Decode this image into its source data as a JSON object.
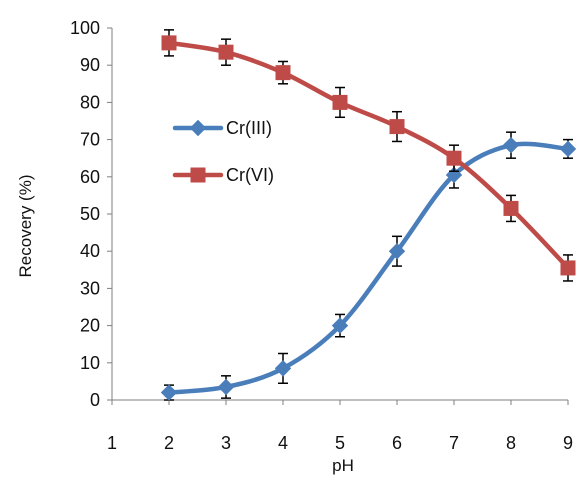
{
  "chart_data": {
    "type": "line",
    "xlabel": "pH",
    "ylabel": "Recovery (%)",
    "xlim": [
      1,
      9
    ],
    "ylim": [
      0,
      100
    ],
    "xticks": [
      1,
      2,
      3,
      4,
      5,
      6,
      7,
      8,
      9
    ],
    "yticks": [
      0,
      10,
      20,
      30,
      40,
      50,
      60,
      70,
      80,
      90,
      100
    ],
    "grid": false,
    "smooth": true,
    "error_bars": true,
    "legend_position": "center-left",
    "series": [
      {
        "name": "Cr(III)",
        "color": "#4a7ebb",
        "marker": "diamond",
        "x": [
          2,
          3,
          4,
          5,
          6,
          7,
          8,
          9
        ],
        "y": [
          2,
          3.5,
          8.5,
          20,
          40,
          60.5,
          68.5,
          67.5
        ],
        "err": [
          2,
          3,
          4,
          3,
          4,
          3.5,
          3.5,
          2.5
        ]
      },
      {
        "name": "Cr(VI)",
        "color": "#be4b48",
        "marker": "square",
        "x": [
          2,
          3,
          4,
          5,
          6,
          7,
          8,
          9
        ],
        "y": [
          96,
          93.5,
          88,
          80,
          73.5,
          65,
          51.5,
          35.5
        ],
        "err": [
          3.5,
          3.5,
          3,
          4,
          4,
          3.5,
          3.5,
          3.5
        ]
      }
    ]
  }
}
